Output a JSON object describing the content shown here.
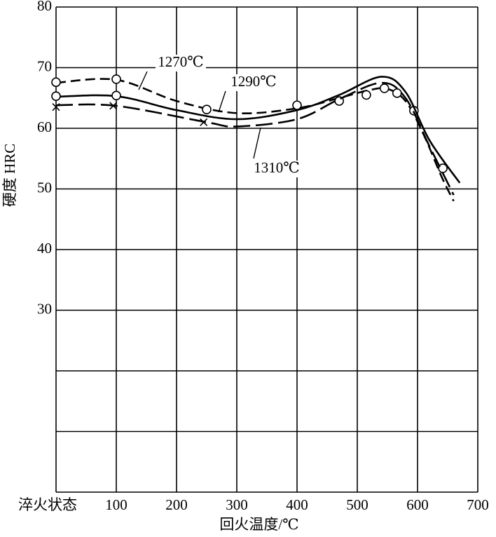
{
  "chart_data": {
    "type": "line",
    "ylabel": "硬度  HRC",
    "xlabel": "回火温度/℃",
    "xlim": [
      0,
      700
    ],
    "ylim": [
      0,
      80
    ],
    "xticks": [
      {
        "value": 0,
        "label": "淬火状态"
      },
      100,
      200,
      300,
      400,
      500,
      600,
      700
    ],
    "yticks": [
      30,
      40,
      50,
      60,
      70,
      80
    ],
    "unlabeled_yticks": [
      10,
      20
    ],
    "grid": true,
    "series": [
      {
        "name": "1270℃",
        "color": "#000000",
        "dash": "dashed",
        "x": [
          0,
          100,
          200,
          300,
          400,
          470,
          520,
          550,
          580,
          610,
          640,
          660
        ],
        "values": [
          67.5,
          68,
          64.5,
          62.5,
          63.3,
          65,
          66.3,
          66.5,
          64.5,
          59,
          52,
          48
        ],
        "marker": "circle",
        "marker_x": [
          0,
          100,
          250,
          400,
          470,
          545,
          594,
          642
        ],
        "marker_values": [
          67.6,
          68.1,
          63.1,
          63.8,
          64.5,
          66.6,
          62.9,
          53.4
        ]
      },
      {
        "name": "1290℃",
        "color": "#000000",
        "dash": "solid",
        "x": [
          0,
          100,
          200,
          300,
          400,
          470,
          540,
          580,
          620,
          670
        ],
        "values": [
          65.2,
          65.3,
          63,
          61.5,
          63,
          65.5,
          68.5,
          66,
          58,
          51
        ],
        "marker": "circle",
        "marker_x": [
          0,
          100,
          515,
          566
        ],
        "marker_values": [
          65.3,
          65.4,
          65.5,
          65.8
        ]
      },
      {
        "name": "1310℃",
        "color": "#000000",
        "dash": "longdash",
        "x": [
          0,
          100,
          250,
          300,
          400,
          470,
          540,
          580,
          620,
          660
        ],
        "values": [
          63.8,
          63.7,
          61,
          60.3,
          61.5,
          64.8,
          67.5,
          65,
          57,
          49
        ],
        "marker": "cross",
        "marker_x": [
          0,
          95,
          245
        ],
        "marker_values": [
          63.5,
          63.7,
          61
        ]
      }
    ]
  }
}
